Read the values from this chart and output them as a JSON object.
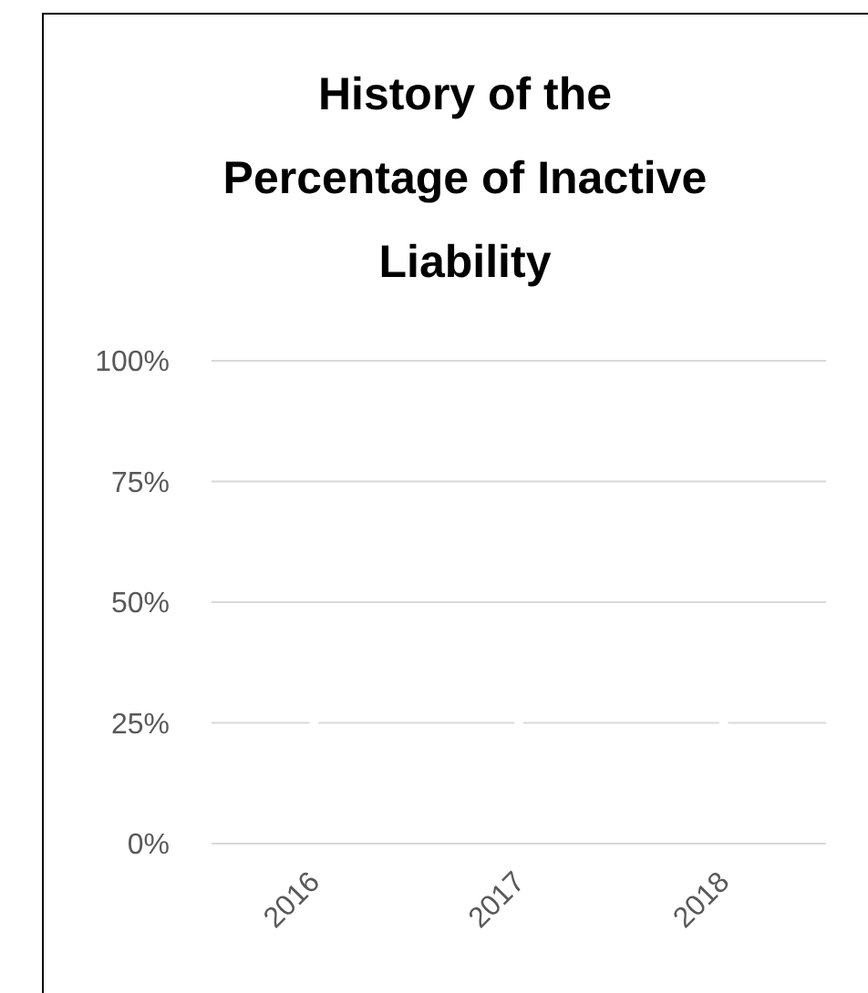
{
  "chart_data": {
    "type": "scatter",
    "title": "History of the Percentage of Inactive Liability",
    "categories": [
      "2016",
      "2017",
      "2018"
    ],
    "values": [
      0.25,
      0.25,
      0.25
    ],
    "color": "#ffffff",
    "marker": "circle",
    "ylim": [
      0,
      1
    ],
    "yticks": [
      {
        "value": 0,
        "label": "0%"
      },
      {
        "value": 0.25,
        "label": "25%"
      },
      {
        "value": 0.5,
        "label": "50%"
      },
      {
        "value": 0.75,
        "label": "75%"
      },
      {
        "value": 1,
        "label": "100%"
      }
    ],
    "grid": "y"
  }
}
